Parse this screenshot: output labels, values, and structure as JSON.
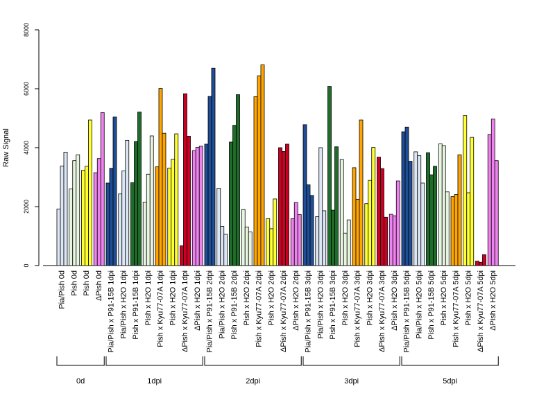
{
  "chart_data": {
    "type": "bar",
    "title": "",
    "xlabel": "",
    "ylabel": "Raw Signal",
    "ylim": [
      0,
      8000
    ],
    "yticks": [
      0,
      2000,
      4000,
      6000,
      8000
    ],
    "grid": false,
    "legend": "none",
    "categories": [
      "Pia/Pish 0d",
      "Pish 0d",
      "Pish 0d",
      "ΔPish 0d",
      "Pia/Pish x P91-15B 1dpi",
      "Pia/Pish x H2O 1dpi",
      "Pish x P91-15B 1dpi",
      "Pish x H2O 1dpi",
      "Pish x Kyu77-07A 1dpi",
      "Pish x H2O 1dpi",
      "ΔPish x Kyu77-07A 1dpi",
      "ΔPish x H2O 1dpi",
      "Pia/Pish x P91-15B 2dpi",
      "Pia/Pish x H2O 2dpi",
      "Pish x P91-15B 2dpi",
      "Pish x H2O 2dpi",
      "Pish x Kyu77-07A 2dpi",
      "Pish x H2O 2dpi",
      "ΔPish x Kyu77-07A 2dpi",
      "ΔPish x H2O 2dpi",
      "Pia/Pish x P91-15B 3dpi",
      "Pia/Pish x H2O 3dpi",
      "Pish x P91-15B 3dpi",
      "Pish x H2O 3dpi",
      "Pish x Kyu77-07A 3dpi",
      "Pish x H2O 3dpi",
      "ΔPish x Kyu77-07A 3dpi",
      "ΔPish x H2O 3dpi",
      "Pia/Pish x P91-15B 5dpi",
      "Pia/Pish x H2O 5dpi",
      "Pish x P91-15B 5dpi",
      "Pish x H2O 5dpi",
      "Pish x Kyu77-07A 5dpi",
      "Pish x H2O 5dpi",
      "ΔPish x Kyu77-07A 5dpi",
      "ΔPish x H2O 5dpi"
    ],
    "colors": [
      "#dce6f5",
      "#e8f5e0",
      "#ffff33",
      "#ee82ee",
      "#1f4e96",
      "#dce6f5",
      "#1e6b2a",
      "#e8f5e0",
      "#ffa500",
      "#ffff33",
      "#cc0022",
      "#ee82ee",
      "#1f4e96",
      "#dce6f5",
      "#1e6b2a",
      "#e8f5e0",
      "#ffa500",
      "#ffff33",
      "#cc0022",
      "#ee82ee",
      "#1f4e96",
      "#dce6f5",
      "#1e6b2a",
      "#e8f5e0",
      "#ffa500",
      "#ffff33",
      "#cc0022",
      "#ee82ee",
      "#1f4e96",
      "#dce6f5",
      "#1e6b2a",
      "#e8f5e0",
      "#ffa500",
      "#ffff33",
      "#cc0022",
      "#ee82ee"
    ],
    "values": [
      [
        1920,
        3380,
        3850
      ],
      [
        2600,
        3560,
        3760
      ],
      [
        3230,
        3370,
        4940
      ],
      [
        3150,
        3630,
        5190
      ],
      [
        2800,
        3300,
        5040
      ],
      [
        2430,
        3210,
        4250
      ],
      [
        2810,
        4210,
        5210
      ],
      [
        2150,
        3100,
        4400
      ],
      [
        3350,
        6010,
        4490
      ],
      [
        3310,
        3610,
        4470
      ],
      [
        670,
        5830,
        4390
      ],
      [
        3900,
        4010,
        4050
      ],
      [
        4120,
        5740,
        6700
      ],
      [
        2620,
        1330,
        1060
      ],
      [
        4190,
        4760,
        5800
      ],
      [
        1900,
        1310,
        1140
      ],
      [
        5730,
        6440,
        6810
      ],
      [
        1590,
        1250,
        2260
      ],
      [
        4000,
        3870,
        4120
      ],
      [
        1590,
        2140,
        1730
      ],
      [
        4780,
        2740,
        2380
      ],
      [
        1660,
        4000,
        1860
      ],
      [
        6080,
        1880,
        4030
      ],
      [
        3600,
        1100,
        1550
      ],
      [
        3320,
        2250,
        4940
      ],
      [
        2100,
        2890,
        4010
      ],
      [
        3680,
        3290,
        1640
      ],
      [
        1740,
        1690,
        2870
      ],
      [
        4540,
        4700,
        3540
      ],
      [
        3860,
        3730,
        2800
      ],
      [
        3830,
        3080,
        3370
      ],
      [
        4130,
        4070,
        2500
      ],
      [
        2340,
        2410,
        3760
      ],
      [
        5090,
        2470,
        4350
      ],
      [
        150,
        110,
        370
      ],
      [
        4450,
        4970,
        3560
      ]
    ],
    "groups": [
      {
        "label": "0d",
        "start": 0,
        "end": 3
      },
      {
        "label": "1dpi",
        "start": 4,
        "end": 11
      },
      {
        "label": "2dpi",
        "start": 12,
        "end": 19
      },
      {
        "label": "3dpi",
        "start": 20,
        "end": 27
      },
      {
        "label": "5dpi",
        "start": 28,
        "end": 35
      }
    ]
  }
}
